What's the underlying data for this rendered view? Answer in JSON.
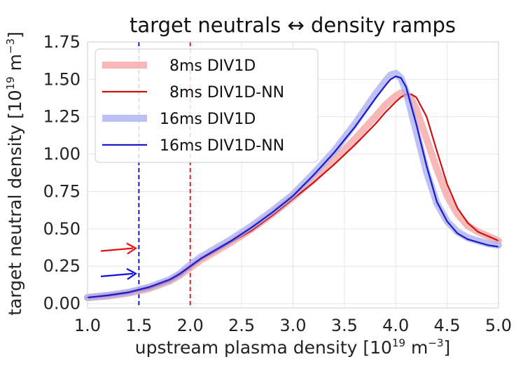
{
  "chart_data": {
    "type": "line",
    "title": "target neutrals ↔ density ramps",
    "xlabel": {
      "prefix": "upstream plasma density [10",
      "sup1": "19",
      "mid": " m",
      "sup2": "−3",
      "suffix": "]"
    },
    "ylabel": {
      "prefix": "target neutral density [10",
      "sup1": "19",
      "mid": " m",
      "sup2": "−3",
      "suffix": "]"
    },
    "xlim": [
      1.0,
      5.0
    ],
    "ylim": [
      -0.03,
      1.75
    ],
    "xticks": [
      1.0,
      1.5,
      2.0,
      2.5,
      3.0,
      3.5,
      4.0,
      4.5,
      5.0
    ],
    "xtick_labels": [
      "1.0",
      "1.5",
      "2.0",
      "2.5",
      "3.0",
      "3.5",
      "4.0",
      "4.5",
      "5.0"
    ],
    "yticks": [
      0.0,
      0.25,
      0.5,
      0.75,
      1.0,
      1.25,
      1.5,
      1.75
    ],
    "ytick_labels": [
      "0.00",
      "0.25",
      "0.50",
      "0.75",
      "1.00",
      "1.25",
      "1.50",
      "1.75"
    ],
    "grid": true,
    "legend_position": "top-left",
    "series": [
      {
        "name": "  8ms DIV1D",
        "color": "#f4a0a0",
        "style": "thick",
        "x": [
          1.0,
          1.2,
          1.4,
          1.6,
          1.8,
          1.9,
          2.0,
          2.1,
          2.2,
          2.4,
          2.6,
          2.8,
          3.0,
          3.2,
          3.4,
          3.6,
          3.8,
          3.9,
          4.0,
          4.05,
          4.1,
          4.15,
          4.2,
          4.3,
          4.4,
          4.5,
          4.6,
          4.7,
          4.8,
          4.9,
          5.0
        ],
        "y": [
          0.04,
          0.05,
          0.07,
          0.1,
          0.15,
          0.19,
          0.24,
          0.29,
          0.33,
          0.41,
          0.5,
          0.6,
          0.71,
          0.83,
          0.96,
          1.1,
          1.25,
          1.33,
          1.39,
          1.41,
          1.4,
          1.37,
          1.3,
          1.1,
          0.9,
          0.72,
          0.6,
          0.52,
          0.48,
          0.45,
          0.42
        ]
      },
      {
        "name": "  8ms DIV1D-NN",
        "color": "#cc1111",
        "style": "thin",
        "x": [
          1.0,
          1.2,
          1.4,
          1.6,
          1.8,
          1.9,
          2.0,
          2.1,
          2.2,
          2.4,
          2.6,
          2.8,
          3.0,
          3.2,
          3.4,
          3.6,
          3.8,
          3.9,
          4.0,
          4.05,
          4.1,
          4.15,
          4.2,
          4.3,
          4.4,
          4.5,
          4.6,
          4.7,
          4.8,
          4.9,
          5.0
        ],
        "y": [
          0.04,
          0.05,
          0.07,
          0.1,
          0.15,
          0.19,
          0.24,
          0.29,
          0.33,
          0.41,
          0.49,
          0.59,
          0.7,
          0.81,
          0.93,
          1.06,
          1.2,
          1.28,
          1.35,
          1.38,
          1.4,
          1.4,
          1.38,
          1.25,
          1.02,
          0.8,
          0.64,
          0.54,
          0.48,
          0.45,
          0.42
        ]
      },
      {
        "name": "16ms DIV1D",
        "color": "#a8acf0",
        "style": "thick",
        "x": [
          1.0,
          1.2,
          1.4,
          1.6,
          1.8,
          1.9,
          2.0,
          2.1,
          2.2,
          2.4,
          2.6,
          2.8,
          3.0,
          3.2,
          3.4,
          3.6,
          3.8,
          3.9,
          3.95,
          4.0,
          4.05,
          4.1,
          4.2,
          4.3,
          4.4,
          4.5,
          4.6,
          4.7,
          4.8,
          4.9,
          5.0
        ],
        "y": [
          0.04,
          0.055,
          0.075,
          0.11,
          0.16,
          0.2,
          0.26,
          0.31,
          0.35,
          0.43,
          0.52,
          0.62,
          0.73,
          0.87,
          1.02,
          1.2,
          1.4,
          1.49,
          1.53,
          1.54,
          1.51,
          1.42,
          1.15,
          0.88,
          0.67,
          0.55,
          0.48,
          0.44,
          0.42,
          0.4,
          0.39
        ]
      },
      {
        "name": "16ms DIV1D-NN",
        "color": "#1a1ac8",
        "style": "thin",
        "x": [
          1.0,
          1.2,
          1.4,
          1.6,
          1.8,
          1.9,
          2.0,
          2.1,
          2.2,
          2.4,
          2.6,
          2.8,
          3.0,
          3.2,
          3.4,
          3.6,
          3.8,
          3.9,
          3.95,
          4.0,
          4.05,
          4.1,
          4.2,
          4.3,
          4.4,
          4.5,
          4.6,
          4.7,
          4.8,
          4.9,
          5.0
        ],
        "y": [
          0.04,
          0.055,
          0.075,
          0.11,
          0.16,
          0.2,
          0.25,
          0.3,
          0.34,
          0.42,
          0.51,
          0.61,
          0.72,
          0.86,
          1.01,
          1.18,
          1.37,
          1.46,
          1.5,
          1.52,
          1.51,
          1.45,
          1.2,
          0.92,
          0.68,
          0.55,
          0.47,
          0.43,
          0.41,
          0.39,
          0.38
        ]
      }
    ],
    "vlines": [
      {
        "x": 1.5,
        "color": "#1a1ac8",
        "style": "dashed"
      },
      {
        "x": 2.0,
        "color": "#e02020",
        "style": "dashed"
      }
    ],
    "annotations": [
      {
        "type": "arrow",
        "color": "#e81010",
        "x_from": 1.13,
        "x_to": 1.47,
        "y": 0.37
      },
      {
        "type": "arrow",
        "color": "#1010e8",
        "x_from": 1.13,
        "x_to": 1.47,
        "y": 0.2
      }
    ]
  }
}
